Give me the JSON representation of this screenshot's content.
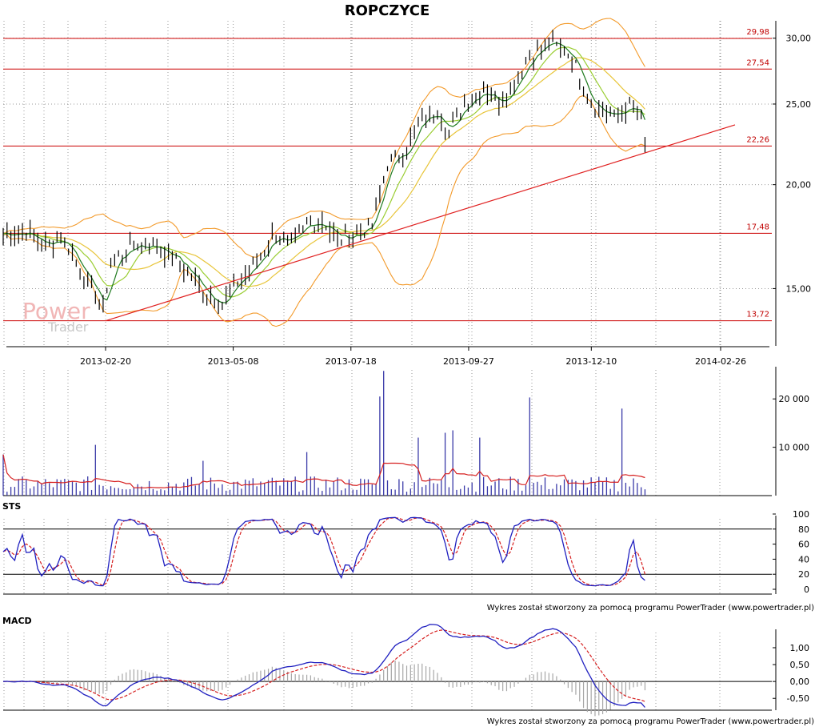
{
  "title": "ROPCZYCE",
  "watermark": {
    "word1": "Power",
    "word2": "Trader"
  },
  "credit_text": "Wykres został stworzony za pomocą programu PowerTrader (www.powertrader.pl)",
  "panels": {
    "sts_label": "STS",
    "macd_label": "MACD"
  },
  "colors": {
    "level_line": "#cc0000",
    "trend_line": "#e02020",
    "bollinger": "#f39a2a",
    "ma_fast": "#1e7a1e",
    "ma_medium": "#9acd32",
    "ma_slow": "#e8c53a",
    "volume_bar": "#3a3aa8",
    "volume_avg": "#d62020",
    "osc_main": "#2020c0",
    "osc_signal": "#d62020",
    "macd_hist": "#a6a6a6"
  },
  "chart_data": [
    {
      "type": "line",
      "name": "price",
      "x_ticks": [
        "2013-02-20",
        "2013-05-08",
        "2013-07-18",
        "2013-09-27",
        "2013-12-10",
        "2014-02-26"
      ],
      "y_ticks": [
        "15,00",
        "20,00",
        "25,00",
        "30,00"
      ],
      "ylim": [
        12.8,
        31.2
      ],
      "y_scale": "log",
      "levels": [
        {
          "value": 29.98,
          "label": "29,98"
        },
        {
          "value": 27.54,
          "label": "27,54"
        },
        {
          "value": 22.26,
          "label": "22,26"
        },
        {
          "value": 17.48,
          "label": "17,48"
        },
        {
          "value": 13.72,
          "label": "13,72"
        }
      ],
      "trend_line": {
        "from": [
          "2013-02-20",
          13.72
        ],
        "to": [
          "2014-02-26",
          23.6
        ]
      },
      "close_keypoints": [
        [
          "2013-01-01",
          17.6
        ],
        [
          "2013-01-14",
          16.9
        ],
        [
          "2013-01-25",
          17.3
        ],
        [
          "2013-02-05",
          15.9
        ],
        [
          "2013-02-18",
          14.1
        ],
        [
          "2013-02-22",
          16.1
        ],
        [
          "2013-03-08",
          16.9
        ],
        [
          "2013-03-22",
          16.9
        ],
        [
          "2013-04-05",
          16.1
        ],
        [
          "2013-04-20",
          14.9
        ],
        [
          "2013-05-01",
          14.4
        ],
        [
          "2013-05-10",
          15.3
        ],
        [
          "2013-05-22",
          16.1
        ],
        [
          "2013-06-01",
          17.4
        ],
        [
          "2013-06-12",
          16.9
        ],
        [
          "2013-06-22",
          17.9
        ],
        [
          "2013-07-01",
          18.1
        ],
        [
          "2013-07-10",
          17.2
        ],
        [
          "2013-07-20",
          17.4
        ],
        [
          "2013-07-30",
          17.9
        ],
        [
          "2013-08-10",
          21.2
        ],
        [
          "2013-08-20",
          22.1
        ],
        [
          "2013-08-28",
          23.6
        ],
        [
          "2013-09-08",
          24.6
        ],
        [
          "2013-09-15",
          23.1
        ],
        [
          "2013-09-25",
          25.1
        ],
        [
          "2013-10-05",
          26.1
        ],
        [
          "2013-10-15",
          25.1
        ],
        [
          "2013-10-25",
          26.6
        ],
        [
          "2013-11-03",
          28.6
        ],
        [
          "2013-11-15",
          29.6
        ],
        [
          "2013-11-28",
          28.6
        ],
        [
          "2013-12-06",
          26.1
        ],
        [
          "2013-12-15",
          24.6
        ],
        [
          "2013-12-24",
          24.1
        ],
        [
          "2014-01-03",
          24.9
        ],
        [
          "2014-01-08",
          23.9
        ],
        [
          "2014-01-11",
          22.4
        ]
      ]
    },
    {
      "type": "bar",
      "name": "volume",
      "y_ticks": [
        "10 000",
        "20 000"
      ],
      "ylim": [
        0,
        26000
      ],
      "spikes": [
        [
          "2013-02-13",
          10500
        ],
        [
          "2013-04-20",
          7200
        ],
        [
          "2013-06-22",
          9000
        ],
        [
          "2013-08-05",
          20500
        ],
        [
          "2013-08-07",
          25800
        ],
        [
          "2013-08-28",
          12000
        ],
        [
          "2013-09-12",
          13000
        ],
        [
          "2013-09-17",
          13500
        ],
        [
          "2013-10-03",
          12000
        ],
        [
          "2013-11-03",
          20300
        ],
        [
          "2013-12-29",
          18000
        ]
      ]
    },
    {
      "type": "line",
      "name": "STS",
      "y_ticks": [
        "0",
        "20",
        "40",
        "60",
        "80",
        "100"
      ],
      "ylim": [
        0,
        100
      ],
      "ref_lines": [
        20,
        80
      ]
    },
    {
      "type": "line",
      "name": "MACD",
      "y_ticks": [
        "-0,50",
        "0,00",
        "0,50",
        "1,00"
      ],
      "ylim": [
        -0.85,
        1.45
      ],
      "ref_lines": [
        0
      ]
    }
  ]
}
